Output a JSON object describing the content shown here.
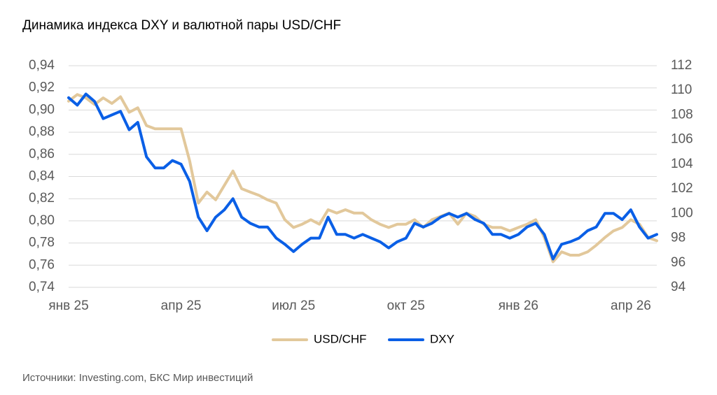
{
  "chart_data": {
    "type": "line",
    "title": "Динамика индекса DXY и валютной пары USD/CHF",
    "source": "Источники: Investing.com, БКС Мир инвестиций",
    "categories": [
      "янв 25",
      null,
      null,
      null,
      null,
      null,
      null,
      null,
      null,
      null,
      null,
      null,
      null,
      "апр 25",
      null,
      null,
      null,
      null,
      null,
      null,
      null,
      null,
      null,
      null,
      null,
      null,
      "июл 25",
      null,
      null,
      null,
      null,
      null,
      null,
      null,
      null,
      null,
      null,
      null,
      null,
      "окт 25",
      null,
      null,
      null,
      null,
      null,
      null,
      null,
      null,
      null,
      null,
      null,
      null,
      "янв 26",
      null,
      null,
      null,
      null,
      null,
      null,
      null,
      null,
      null,
      null,
      null,
      null,
      "апр 26",
      null,
      null,
      null
    ],
    "series": [
      {
        "name": "USD/CHF",
        "color": "#e2c89b",
        "axis": "y",
        "values": [
          0.908,
          0.914,
          0.911,
          0.905,
          0.911,
          0.906,
          0.912,
          0.898,
          0.902,
          0.886,
          0.883,
          0.883,
          0.883,
          0.883,
          0.854,
          0.816,
          0.826,
          0.819,
          0.832,
          0.845,
          0.829,
          0.826,
          0.823,
          0.819,
          0.816,
          0.801,
          0.794,
          0.797,
          0.801,
          0.797,
          0.81,
          0.807,
          0.81,
          0.807,
          0.807,
          0.801,
          0.797,
          0.794,
          0.797,
          0.797,
          0.801,
          0.794,
          0.801,
          0.804,
          0.807,
          0.797,
          0.807,
          0.804,
          0.797,
          0.794,
          0.794,
          0.791,
          0.794,
          0.797,
          0.801,
          0.785,
          0.763,
          0.772,
          0.769,
          0.769,
          0.772,
          0.778,
          0.785,
          0.791,
          0.794,
          0.801,
          0.797,
          0.785,
          0.782
        ]
      },
      {
        "name": "DXY",
        "color": "#0a5fe6",
        "axis": "y2",
        "values": [
          109.4,
          108.8,
          109.7,
          109.1,
          107.7,
          108.0,
          108.3,
          106.8,
          107.4,
          104.6,
          103.7,
          103.7,
          104.3,
          104.0,
          102.6,
          99.7,
          98.6,
          99.7,
          100.3,
          101.2,
          99.7,
          99.2,
          98.9,
          98.9,
          98.0,
          97.5,
          96.9,
          97.5,
          98.0,
          98.0,
          99.7,
          98.3,
          98.3,
          98.0,
          98.3,
          98.0,
          97.7,
          97.2,
          97.7,
          98.0,
          99.2,
          98.9,
          99.2,
          99.7,
          100.0,
          99.7,
          100.0,
          99.5,
          99.2,
          98.3,
          98.3,
          98.0,
          98.3,
          98.9,
          99.2,
          98.3,
          96.3,
          97.5,
          97.7,
          98.0,
          98.6,
          98.9,
          100.0,
          100.0,
          99.5,
          100.3,
          98.9,
          98.0,
          98.3
        ]
      }
    ],
    "ylim": [
      0.74,
      0.94
    ],
    "yticks": [
      {
        "value": 0.74,
        "label": "0,74"
      },
      {
        "value": 0.76,
        "label": "0,76"
      },
      {
        "value": 0.78,
        "label": "0,78"
      },
      {
        "value": 0.8,
        "label": "0,80"
      },
      {
        "value": 0.82,
        "label": "0,82"
      },
      {
        "value": 0.84,
        "label": "0,84"
      },
      {
        "value": 0.86,
        "label": "0,86"
      },
      {
        "value": 0.88,
        "label": "0,88"
      },
      {
        "value": 0.9,
        "label": "0,90"
      },
      {
        "value": 0.92,
        "label": "0,92"
      },
      {
        "value": 0.94,
        "label": "0,94"
      }
    ],
    "y2lim": [
      94,
      112
    ],
    "y2ticks": [
      94,
      96,
      98,
      100,
      102,
      104,
      106,
      108,
      110,
      112
    ],
    "grid": true,
    "legend": "bottom"
  }
}
